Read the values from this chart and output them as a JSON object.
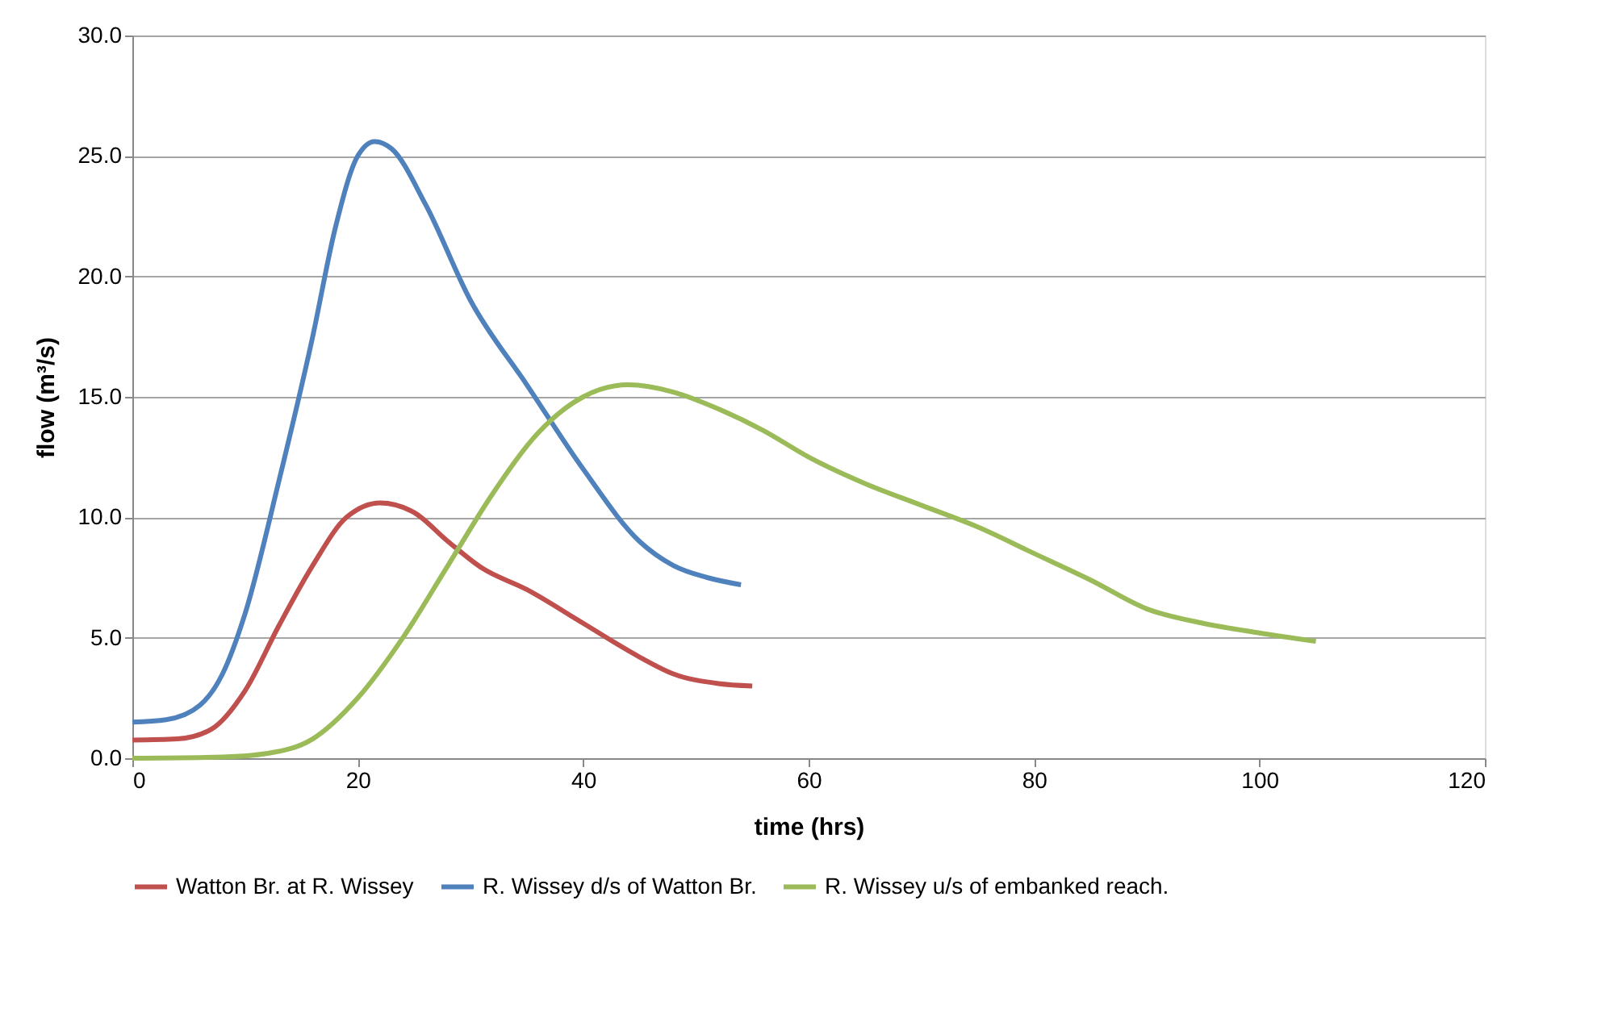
{
  "chart_data": {
    "type": "line",
    "xlabel": "time (hrs)",
    "ylabel": "flow (m³/s)",
    "xlim": [
      0,
      120
    ],
    "xticks": [
      0,
      20,
      40,
      60,
      80,
      100,
      120
    ],
    "ylim": [
      0,
      30
    ],
    "yticks": [
      {
        "value": 0,
        "label": "0.0"
      },
      {
        "value": 5,
        "label": "5.0"
      },
      {
        "value": 10,
        "label": "10.0"
      },
      {
        "value": 15,
        "label": "15.0"
      },
      {
        "value": 20,
        "label": "20.0"
      },
      {
        "value": 25,
        "label": "25.0"
      },
      {
        "value": 30,
        "label": "30.0"
      }
    ],
    "grid": "y",
    "legend": "bottom",
    "marker": "none",
    "line_style": "solid",
    "series": [
      {
        "name": "Watton Br. at R. Wissey",
        "color": "#c0504d",
        "x": [
          0,
          4,
          7,
          10,
          13,
          16,
          19,
          22,
          25,
          28,
          31,
          35,
          40,
          45,
          48,
          52,
          55
        ],
        "values": [
          0.75,
          0.8,
          1.2,
          2.8,
          5.5,
          8,
          10,
          10.6,
          10.2,
          9,
          7.9,
          7,
          5.6,
          4.2,
          3.5,
          3.1,
          3
        ]
      },
      {
        "name": "R. Wissey d/s of Watton Br.",
        "color": "#4f81bd",
        "x": [
          0,
          3,
          6,
          8,
          10,
          13,
          16,
          18,
          20,
          21.5,
          23,
          26,
          30,
          35,
          40,
          45,
          48,
          51,
          54
        ],
        "values": [
          1.5,
          1.6,
          2.2,
          3.5,
          6,
          11.5,
          17.5,
          22,
          25,
          25.6,
          25.3,
          23,
          19,
          15.5,
          12,
          9,
          8,
          7.5,
          7.2
        ]
      },
      {
        "name": "R. Wissey u/s of embanked reach.",
        "color": "#9bbb59",
        "x": [
          0,
          8,
          12,
          16,
          20,
          24,
          28,
          32,
          36,
          40,
          44,
          48,
          52,
          56,
          60,
          65,
          70,
          75,
          80,
          85,
          90,
          95,
          100,
          105
        ],
        "values": [
          0,
          0.05,
          0.2,
          0.8,
          2.5,
          5,
          8,
          11,
          13.5,
          15,
          15.5,
          15.2,
          14.5,
          13.6,
          12.5,
          11.4,
          10.5,
          9.6,
          8.5,
          7.4,
          6.2,
          5.6,
          5.2,
          4.85
        ]
      }
    ]
  }
}
